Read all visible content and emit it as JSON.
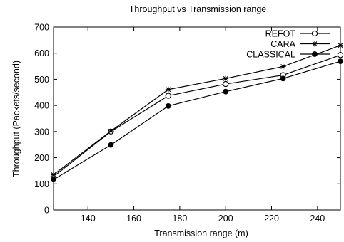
{
  "chart_data": {
    "type": "line",
    "title": "Throughput vs Transmission range",
    "xlabel": "Transmission range (m)",
    "ylabel": "Throughput (Packets/second)",
    "xlim": [
      125,
      250
    ],
    "ylim": [
      0,
      700
    ],
    "xticks": [
      140,
      160,
      180,
      200,
      220,
      240
    ],
    "yticks": [
      0,
      100,
      200,
      300,
      400,
      500,
      600,
      700
    ],
    "x": [
      125,
      150,
      175,
      200,
      225,
      250
    ],
    "grid": false,
    "legend_position": "top-right",
    "series": [
      {
        "name": "REFOT",
        "marker": "open-circle",
        "values": [
          128,
          300,
          437,
          482,
          516,
          593
        ]
      },
      {
        "name": "CARA",
        "marker": "asterisk",
        "values": [
          135,
          302,
          461,
          503,
          549,
          630
        ]
      },
      {
        "name": "CLASSICAL",
        "marker": "filled-circle",
        "values": [
          116,
          249,
          398,
          453,
          503,
          569
        ]
      }
    ]
  }
}
